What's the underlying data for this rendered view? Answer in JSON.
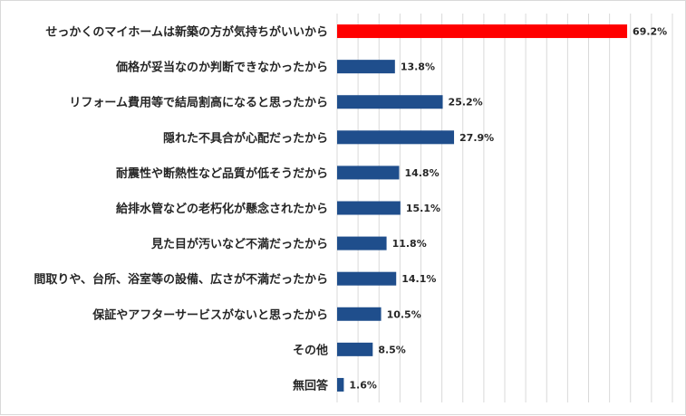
{
  "chart_data": {
    "type": "bar",
    "orientation": "horizontal",
    "title": "",
    "xlabel": "",
    "ylabel": "",
    "xlim": [
      0,
      80
    ],
    "grid": true,
    "legend": "none",
    "value_suffix": "%",
    "categories": [
      "せっかくのマイホームは新築の方が気持ちがいいから",
      "価格が妥当なのか判断できなかったから",
      "リフォーム費用等で結局割高になると思ったから",
      "隠れた不具合が心配だったから",
      "耐震性や断熱性など品質が低そうだから",
      "給排水管などの老朽化が懸念されたから",
      "見た目が汚いなど不満だったから",
      "間取りや、台所、浴室等の設備、広さが不満だったから",
      "保証やアフターサービスがないと思ったから",
      "その他",
      "無回答"
    ],
    "values": [
      69.2,
      13.8,
      25.2,
      27.9,
      14.8,
      15.1,
      11.8,
      14.1,
      10.5,
      8.5,
      1.6
    ],
    "value_labels": [
      "69.2%",
      "13.8%",
      "25.2%",
      "27.9%",
      "14.8%",
      "15.1%",
      "11.8%",
      "14.1%",
      "10.5%",
      "8.5%",
      "1.6%"
    ],
    "highlight_index": 0,
    "colors": {
      "bar": "#1f4e8c",
      "highlight": "#ff0000",
      "grid": "#d9d9d9",
      "text": "#262626"
    }
  }
}
